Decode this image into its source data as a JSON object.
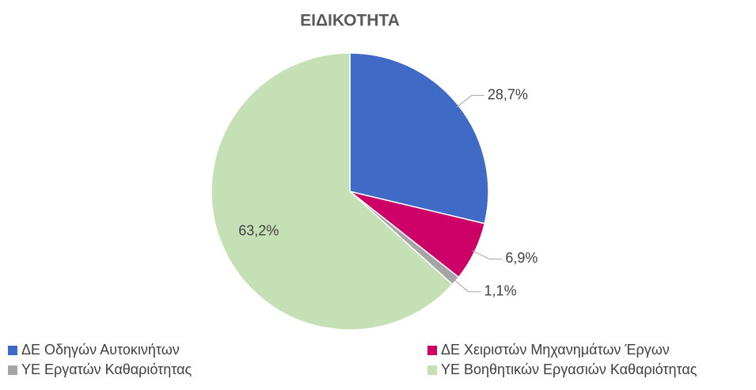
{
  "chart_data": {
    "type": "pie",
    "title": "ΕΙΔΙΚΟΤΗΤΑ",
    "categories": [
      "ΔΕ Οδηγών Αυτοκινήτων",
      "ΔΕ Χειριστών Μηχανημάτων Έργων",
      "ΥΕ Εργατών Καθαριότητας",
      "ΥΕ Βοηθητικών Εργασιών Καθαριότητας"
    ],
    "values": [
      28.7,
      6.9,
      1.1,
      63.2
    ],
    "value_labels": [
      "28,7%",
      "6,9%",
      "1,1%",
      "63,2%"
    ],
    "colors": [
      "#3f6bc6",
      "#cc0066",
      "#a5a5a5",
      "#c5e0b4"
    ],
    "legend": "bottom"
  }
}
